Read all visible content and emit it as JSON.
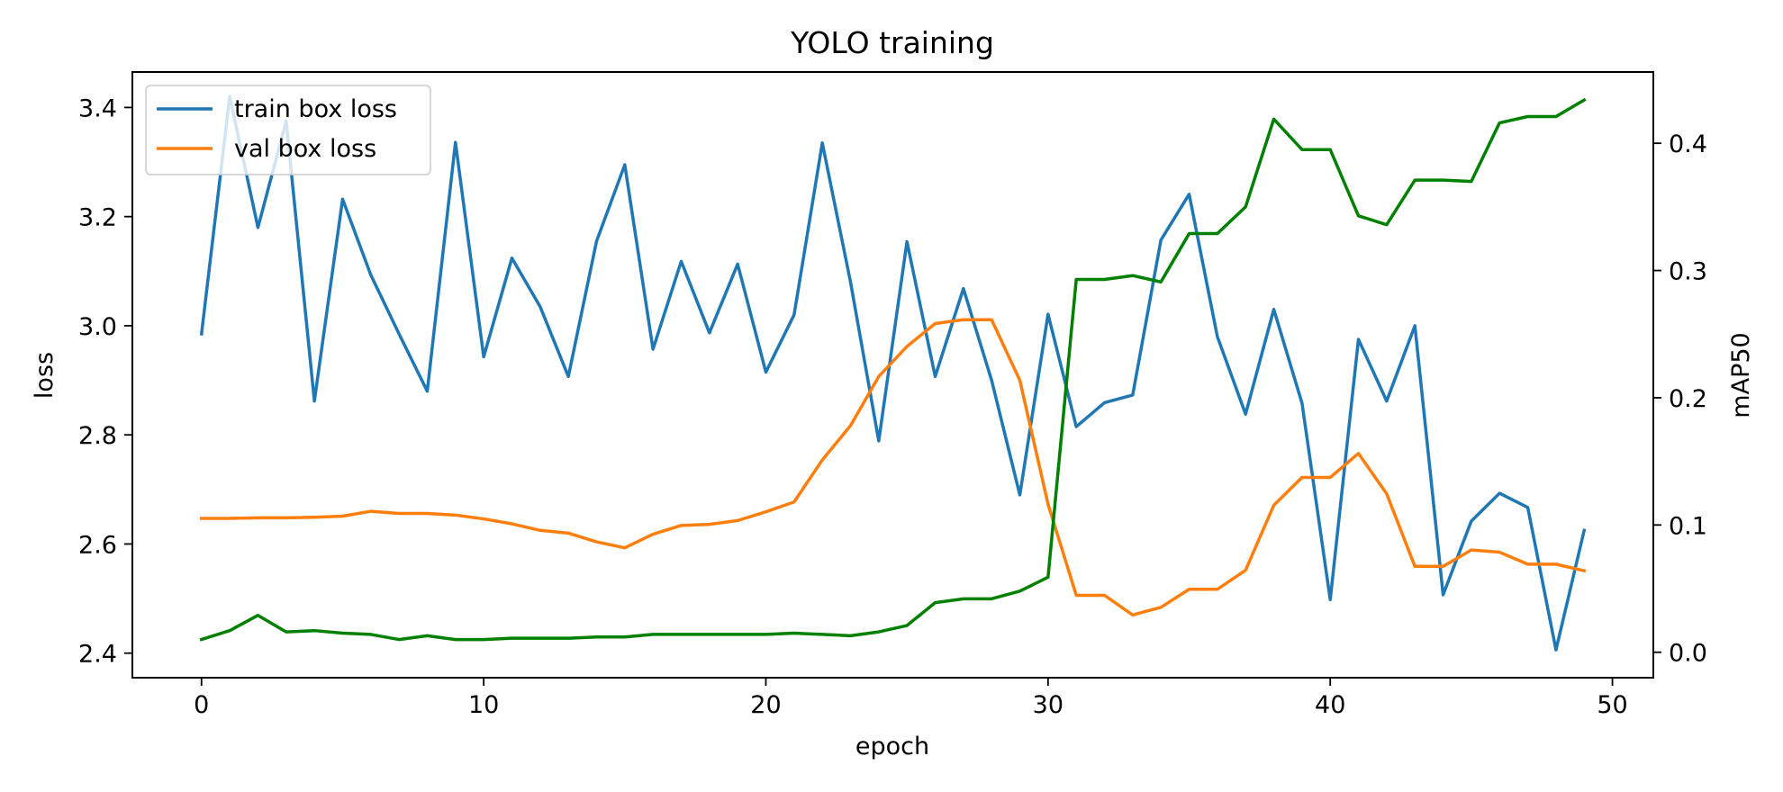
{
  "chart_data": {
    "type": "line",
    "title": "YOLO training",
    "xlabel": "epoch",
    "ylabel": "loss",
    "ylabel_right": "mAP50",
    "x": [
      0,
      1,
      2,
      3,
      4,
      5,
      6,
      7,
      8,
      9,
      10,
      11,
      12,
      13,
      14,
      15,
      16,
      17,
      18,
      19,
      20,
      21,
      22,
      23,
      24,
      25,
      26,
      27,
      28,
      29,
      30,
      31,
      32,
      33,
      34,
      35,
      36,
      37,
      38,
      39,
      40,
      41,
      42,
      43,
      44,
      45,
      46,
      47,
      48,
      49
    ],
    "xlim": [
      -2.45,
      51.45
    ],
    "ylim": [
      2.355,
      3.465
    ],
    "ylim_right": [
      -0.02,
      0.456
    ],
    "xticks": [
      0,
      10,
      20,
      30,
      40,
      50
    ],
    "yticks": [
      2.4,
      2.6,
      2.8,
      3.0,
      3.2,
      3.4
    ],
    "yticks_right": [
      0.0,
      0.1,
      0.2,
      0.3,
      0.4
    ],
    "grid": false,
    "legend_position": "upper-left",
    "series": [
      {
        "name": "train box loss",
        "axis": "left",
        "color": "#1f77b4",
        "values": [
          2.985,
          3.42,
          3.18,
          3.375,
          2.862,
          3.232,
          3.093,
          2.985,
          2.88,
          3.336,
          2.943,
          3.124,
          3.035,
          2.907,
          3.155,
          3.295,
          2.957,
          3.118,
          2.987,
          3.113,
          2.915,
          3.02,
          3.335,
          3.08,
          2.789,
          3.154,
          2.907,
          3.068,
          2.9,
          2.69,
          3.021,
          2.815,
          2.859,
          2.873,
          3.157,
          3.241,
          2.98,
          2.838,
          3.03,
          2.858,
          2.498,
          2.975,
          2.862,
          3.0,
          2.507,
          2.642,
          2.693,
          2.667,
          2.406,
          2.625
        ]
      },
      {
        "name": "val box loss",
        "axis": "left",
        "color": "#ff7f0e",
        "values": [
          2.647,
          2.647,
          2.648,
          2.648,
          2.649,
          2.651,
          2.66,
          2.656,
          2.656,
          2.653,
          2.646,
          2.637,
          2.625,
          2.62,
          2.604,
          2.593,
          2.618,
          2.634,
          2.636,
          2.643,
          2.659,
          2.677,
          2.754,
          2.817,
          2.907,
          2.962,
          3.004,
          3.011,
          3.011,
          2.9,
          2.673,
          2.506,
          2.506,
          2.47,
          2.484,
          2.517,
          2.517,
          2.552,
          2.671,
          2.722,
          2.722,
          2.766,
          2.692,
          2.559,
          2.559,
          2.589,
          2.585,
          2.563,
          2.563,
          2.551
        ]
      },
      {
        "name": "",
        "axis": "right",
        "color": "#008000",
        "values": [
          0.01,
          0.017,
          0.029,
          0.016,
          0.017,
          0.015,
          0.014,
          0.01,
          0.013,
          0.01,
          0.01,
          0.011,
          0.011,
          0.011,
          0.012,
          0.012,
          0.014,
          0.014,
          0.014,
          0.014,
          0.014,
          0.015,
          0.014,
          0.013,
          0.016,
          0.021,
          0.039,
          0.042,
          0.042,
          0.048,
          0.059,
          0.293,
          0.293,
          0.296,
          0.291,
          0.329,
          0.329,
          0.35,
          0.419,
          0.395,
          0.395,
          0.343,
          0.336,
          0.371,
          0.371,
          0.37,
          0.416,
          0.421,
          0.421,
          0.434
        ]
      }
    ]
  }
}
